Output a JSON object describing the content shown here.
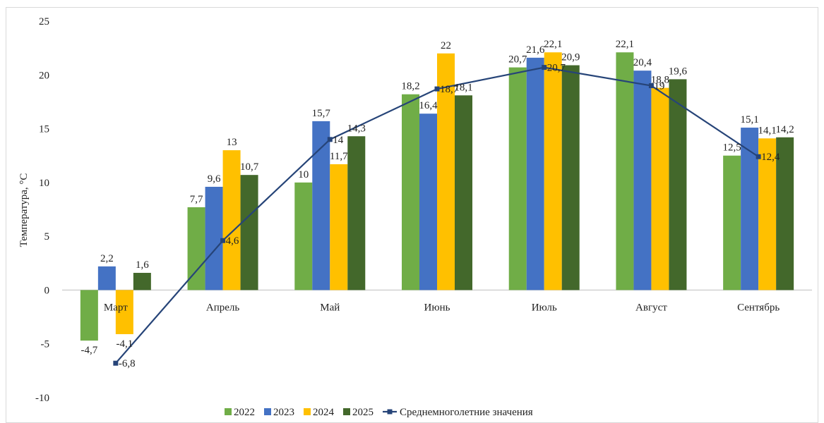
{
  "chart_data": {
    "type": "bar",
    "title": "",
    "xlabel": "",
    "ylabel": "Температура, °C",
    "ylim": [
      -10,
      25
    ],
    "yticks": [
      -10,
      -5,
      0,
      5,
      10,
      15,
      20,
      25
    ],
    "grid": false,
    "legend_position": "bottom",
    "categories": [
      "Март",
      "Апрель",
      "Май",
      "Июнь",
      "Июль",
      "Август",
      "Сентябрь"
    ],
    "series": [
      {
        "name": "2022",
        "type": "bar",
        "color": "#70AD47",
        "values": [
          -4.7,
          7.7,
          10,
          18.2,
          20.7,
          22.1,
          12.5
        ],
        "labels": [
          "-4,7",
          "7,7",
          "10",
          "18,2",
          "20,7",
          "22,1",
          "12,5"
        ]
      },
      {
        "name": "2023",
        "type": "bar",
        "color": "#4472C4",
        "values": [
          2.2,
          9.6,
          15.7,
          16.4,
          21.6,
          20.4,
          15.1
        ],
        "labels": [
          "2,2",
          "9,6",
          "15,7",
          "16,4",
          "21,6",
          "20,4",
          "15,1"
        ]
      },
      {
        "name": "2024",
        "type": "bar",
        "color": "#FFC000",
        "values": [
          -4.1,
          13,
          11.7,
          22,
          22.1,
          18.8,
          14.1
        ],
        "labels": [
          "-4,1",
          "13",
          "11,7",
          "22",
          "22,1",
          "18,8",
          "14,1"
        ]
      },
      {
        "name": "2025",
        "type": "bar",
        "color": "#43682B",
        "values": [
          1.6,
          10.7,
          14.3,
          18.1,
          20.9,
          19.6,
          14.2
        ],
        "labels": [
          "1,6",
          "10,7",
          "14,3",
          "18,1",
          "20,9",
          "19,6",
          "14,2"
        ]
      },
      {
        "name": "Среднемноголетние значения",
        "type": "line",
        "color": "#264478",
        "values": [
          -6.8,
          4.6,
          14,
          18.7,
          20.7,
          19,
          12.4
        ],
        "labels": [
          "-6,8",
          "4,6",
          "14",
          "18,7",
          "20,7",
          "19",
          "12,4"
        ]
      }
    ]
  }
}
